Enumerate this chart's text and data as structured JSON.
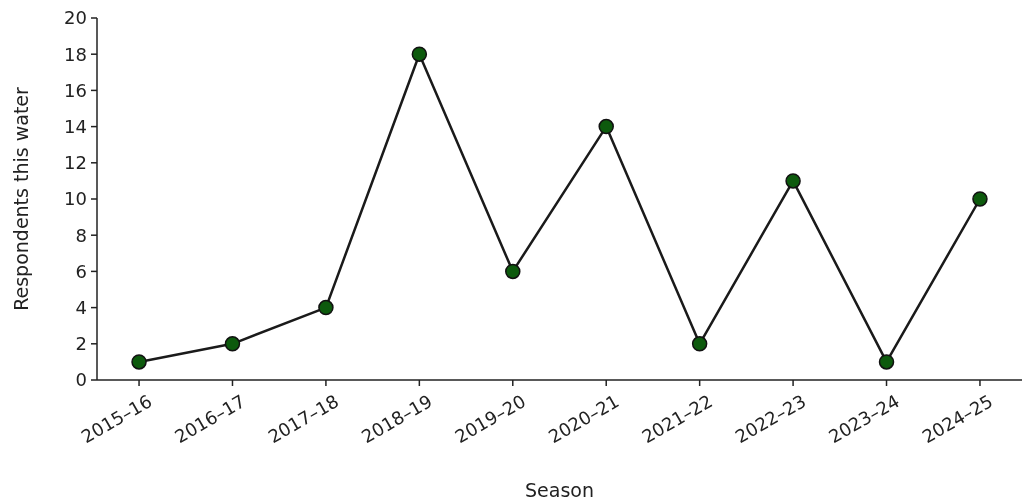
{
  "chart_data": {
    "type": "line",
    "xlabel": "Season",
    "ylabel": "Respondents this water",
    "categories": [
      "2015–16",
      "2016–17",
      "2017–18",
      "2018–19",
      "2019–20",
      "2020–21",
      "2021–22",
      "2022–23",
      "2023–24",
      "2024–25"
    ],
    "series": [
      {
        "color": "#1a1a1a",
        "colors": [
          "#0d5a0d",
          "#0d5a0d",
          "#0d5a0d",
          "#0d5a0d",
          "#0d5a0d",
          "#0d5a0d",
          "#0d5a0d",
          "#0d5a0d",
          "#0d5a0d",
          "#0d5a0d"
        ],
        "values": [
          1,
          2,
          4,
          18,
          6,
          14,
          2,
          11,
          1,
          10
        ]
      }
    ],
    "ylim": [
      0,
      20
    ],
    "yticks": [
      0,
      2,
      4,
      6,
      8,
      10,
      12,
      14,
      16,
      18,
      20
    ],
    "grid": false,
    "marker": "circle",
    "line_style": "solid"
  }
}
